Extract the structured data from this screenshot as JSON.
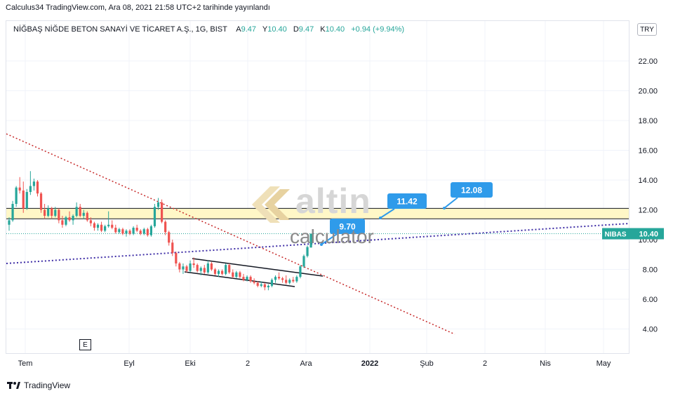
{
  "header": {
    "published": "Calculus34 TradingView.com, Ara 08, 2021 21:58 UTC+2 tarihinde yayınlandı"
  },
  "legend": {
    "symbol": "NİĞBAŞ NİĞDE BETON SANAYİ VE TİCARET A.Ş., 1G, BIST",
    "open_label": "A",
    "open": "9.47",
    "high_label": "Y",
    "high": "10.40",
    "low_label": "D",
    "low": "9.47",
    "close_label": "K",
    "close": "10.40",
    "change": "+0.94 (+9.94%)"
  },
  "currency_button": "TRY",
  "event_badge": "E",
  "watermark": {
    "brand": "altin",
    "sub": "calculator"
  },
  "footer": {
    "brand": "TradingView"
  },
  "colors": {
    "up": "#26a69a",
    "down": "#ef5350",
    "zone_fill": "#fff7c7",
    "callout": "#2f9bea",
    "trend_red": "#c62828",
    "trend_purple": "#3f2ea6",
    "price_badge": "#26a69a"
  },
  "chart_data": {
    "type": "candlestick",
    "ylim": [
      2.0,
      23.9
    ],
    "y_ticks": [
      "22.00",
      "20.00",
      "18.00",
      "16.00",
      "14.00",
      "12.00",
      "10.00",
      "8.00",
      "6.00",
      "4.00"
    ],
    "x_ticks": [
      "Tem",
      "Eyl",
      "Eki",
      "2",
      "Ara",
      "2022",
      "Şub",
      "2",
      "Nis",
      "May"
    ],
    "last_price": {
      "label": "NIBAS",
      "value": "10.40",
      "y": 10.4
    },
    "zone": {
      "top": 12.1,
      "bottom": 11.4
    },
    "callouts": [
      {
        "label": "9.70",
        "value": 9.7
      },
      {
        "label": "11.42",
        "value": 11.42
      },
      {
        "label": "12.08",
        "value": 12.08
      }
    ],
    "candles": [
      [
        11.0,
        11.5,
        10.6,
        11.3
      ],
      [
        11.3,
        12.6,
        11.2,
        12.4
      ],
      [
        12.4,
        13.6,
        12.2,
        13.5
      ],
      [
        13.5,
        14.2,
        13.1,
        13.3
      ],
      [
        13.3,
        13.9,
        11.8,
        12.1
      ],
      [
        12.1,
        13.4,
        12.0,
        13.2
      ],
      [
        13.2,
        14.6,
        13.0,
        13.6
      ],
      [
        13.6,
        14.1,
        13.3,
        13.9
      ],
      [
        13.9,
        14.0,
        12.9,
        13.1
      ],
      [
        13.1,
        13.2,
        11.8,
        12.0
      ],
      [
        12.0,
        12.4,
        11.4,
        11.6
      ],
      [
        11.6,
        12.3,
        11.5,
        12.1
      ],
      [
        12.1,
        12.2,
        11.4,
        11.6
      ],
      [
        11.6,
        12.2,
        11.5,
        12.0
      ],
      [
        12.0,
        12.1,
        11.1,
        11.3
      ],
      [
        11.3,
        11.6,
        10.8,
        11.0
      ],
      [
        11.0,
        11.6,
        10.9,
        11.5
      ],
      [
        11.5,
        11.9,
        11.2,
        11.3
      ],
      [
        11.3,
        11.7,
        11.0,
        11.6
      ],
      [
        11.6,
        12.5,
        11.5,
        12.2
      ],
      [
        12.2,
        12.4,
        11.5,
        11.6
      ],
      [
        11.6,
        12.0,
        11.4,
        11.8
      ],
      [
        11.8,
        11.9,
        11.2,
        11.3
      ],
      [
        11.3,
        11.5,
        10.9,
        11.1
      ],
      [
        11.1,
        11.2,
        10.6,
        10.8
      ],
      [
        10.8,
        11.1,
        10.6,
        11.0
      ],
      [
        11.0,
        11.2,
        10.5,
        10.6
      ],
      [
        10.6,
        11.0,
        10.5,
        10.9
      ],
      [
        10.9,
        11.9,
        10.8,
        11.0
      ],
      [
        11.0,
        11.3,
        10.7,
        10.8
      ],
      [
        10.8,
        11.0,
        10.4,
        10.5
      ],
      [
        10.5,
        10.8,
        10.4,
        10.7
      ],
      [
        10.7,
        10.8,
        10.3,
        10.4
      ],
      [
        10.4,
        10.7,
        10.2,
        10.6
      ],
      [
        10.6,
        10.7,
        10.3,
        10.4
      ],
      [
        10.4,
        10.9,
        10.3,
        10.8
      ],
      [
        10.8,
        11.0,
        10.5,
        10.6
      ],
      [
        10.6,
        10.7,
        10.3,
        10.4
      ],
      [
        10.4,
        10.8,
        10.3,
        10.7
      ],
      [
        10.7,
        10.8,
        10.2,
        10.3
      ],
      [
        10.3,
        11.0,
        10.2,
        10.9
      ],
      [
        10.9,
        12.4,
        10.8,
        12.2
      ],
      [
        12.2,
        12.8,
        12.0,
        12.5
      ],
      [
        12.5,
        12.7,
        11.1,
        11.2
      ],
      [
        11.2,
        11.3,
        10.3,
        10.5
      ],
      [
        10.5,
        10.6,
        9.6,
        9.8
      ],
      [
        9.8,
        10.0,
        8.9,
        9.1
      ],
      [
        9.1,
        9.2,
        8.2,
        8.4
      ],
      [
        8.4,
        8.5,
        7.8,
        8.0
      ],
      [
        8.0,
        8.4,
        7.7,
        8.2
      ],
      [
        8.2,
        8.3,
        7.8,
        7.9
      ],
      [
        7.9,
        8.6,
        7.8,
        8.4
      ],
      [
        8.4,
        8.8,
        8.1,
        8.3
      ],
      [
        8.3,
        8.4,
        7.8,
        7.9
      ],
      [
        7.9,
        8.2,
        7.6,
        8.1
      ],
      [
        8.1,
        8.3,
        7.7,
        7.8
      ],
      [
        7.8,
        8.6,
        7.7,
        8.4
      ],
      [
        8.4,
        8.5,
        7.9,
        8.0
      ],
      [
        8.0,
        8.1,
        7.6,
        7.7
      ],
      [
        7.7,
        8.0,
        7.5,
        7.9
      ],
      [
        7.9,
        8.0,
        7.6,
        7.7
      ],
      [
        7.7,
        8.4,
        7.6,
        8.3
      ],
      [
        8.3,
        8.4,
        7.7,
        7.8
      ],
      [
        7.8,
        8.0,
        7.4,
        7.5
      ],
      [
        7.5,
        7.9,
        7.4,
        7.8
      ],
      [
        7.8,
        7.9,
        7.4,
        7.5
      ],
      [
        7.5,
        7.7,
        7.2,
        7.3
      ],
      [
        7.3,
        7.6,
        7.2,
        7.5
      ],
      [
        7.5,
        7.6,
        7.1,
        7.2
      ],
      [
        7.2,
        7.4,
        7.0,
        7.1
      ],
      [
        7.1,
        7.2,
        6.8,
        6.9
      ],
      [
        6.9,
        7.2,
        6.8,
        7.0
      ],
      [
        7.0,
        7.1,
        6.6,
        6.8
      ],
      [
        6.8,
        7.0,
        6.6,
        6.9
      ],
      [
        6.9,
        7.4,
        6.8,
        7.3
      ],
      [
        7.3,
        7.6,
        7.1,
        7.5
      ],
      [
        7.5,
        7.8,
        7.3,
        7.4
      ],
      [
        7.4,
        7.5,
        7.1,
        7.3
      ],
      [
        7.3,
        7.6,
        7.0,
        7.1
      ],
      [
        7.1,
        7.4,
        7.0,
        7.3
      ],
      [
        7.3,
        7.5,
        7.1,
        7.2
      ],
      [
        7.2,
        7.6,
        7.1,
        7.5
      ],
      [
        7.5,
        8.3,
        7.4,
        8.2
      ],
      [
        8.2,
        9.0,
        8.1,
        8.9
      ],
      [
        8.9,
        9.6,
        8.8,
        9.5
      ],
      [
        9.47,
        10.4,
        9.47,
        10.4
      ]
    ]
  }
}
